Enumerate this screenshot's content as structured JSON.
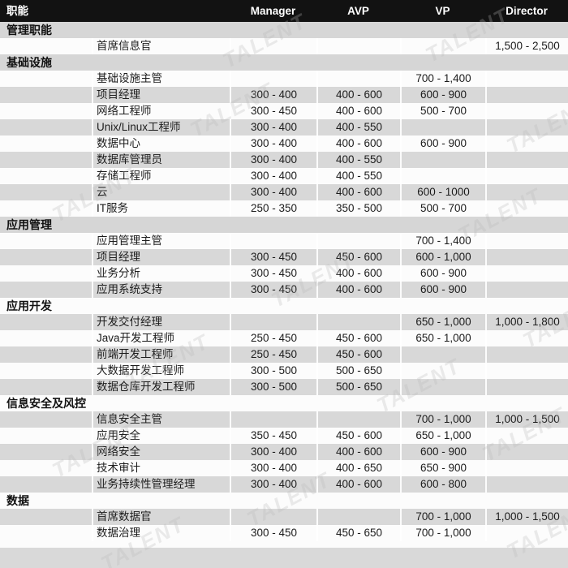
{
  "header": {
    "function_label": "职能",
    "columns": [
      "Manager",
      "AVP",
      "VP",
      "Director"
    ]
  },
  "watermark_text": "TALENT",
  "colors": {
    "header_bg": "#121212",
    "header_text": "#ffffff",
    "stripe_gray": "#d8d8d8",
    "stripe_white": "#fcfcfc",
    "body_text": "#1c1c1c"
  },
  "table": {
    "sections": [
      {
        "name": "管理职能",
        "rows": [
          {
            "role": "首席信息官",
            "manager": "",
            "avp": "",
            "vp": "",
            "director": "1,500 - 2,500"
          }
        ]
      },
      {
        "name": "基础设施",
        "rows": [
          {
            "role": "基础设施主管",
            "manager": "",
            "avp": "",
            "vp": "700 - 1,400",
            "director": ""
          },
          {
            "role": "项目经理",
            "manager": "300 - 400",
            "avp": "400 - 600",
            "vp": "600 - 900",
            "director": ""
          },
          {
            "role": "网络工程师",
            "manager": "300 - 450",
            "avp": "400 - 600",
            "vp": "500 - 700",
            "director": ""
          },
          {
            "role": "Unix/Linux工程师",
            "manager": "300 - 400",
            "avp": "400 - 550",
            "vp": "",
            "director": ""
          },
          {
            "role": "数据中心",
            "manager": "300 - 400",
            "avp": "400 - 600",
            "vp": "600 - 900",
            "director": ""
          },
          {
            "role": "数据库管理员",
            "manager": "300 - 400",
            "avp": "400 - 550",
            "vp": "",
            "director": ""
          },
          {
            "role": "存储工程师",
            "manager": "300 - 400",
            "avp": "400 - 550",
            "vp": "",
            "director": ""
          },
          {
            "role": "云",
            "manager": "300 - 400",
            "avp": "400 - 600",
            "vp": "600 - 1000",
            "director": ""
          },
          {
            "role": "IT服务",
            "manager": "250 - 350",
            "avp": "350 - 500",
            "vp": "500 - 700",
            "director": ""
          }
        ]
      },
      {
        "name": "应用管理",
        "rows": [
          {
            "role": "应用管理主管",
            "manager": "",
            "avp": "",
            "vp": "700 - 1,400",
            "director": ""
          },
          {
            "role": "项目经理",
            "manager": "300 - 450",
            "avp": "450 - 600",
            "vp": "600 - 1,000",
            "director": ""
          },
          {
            "role": "业务分析",
            "manager": "300 - 450",
            "avp": "400 - 600",
            "vp": "600 - 900",
            "director": ""
          },
          {
            "role": "应用系统支持",
            "manager": "300 - 450",
            "avp": "400 - 600",
            "vp": "600 - 900",
            "director": ""
          }
        ]
      },
      {
        "name": "应用开发",
        "rows": [
          {
            "role": "开发交付经理",
            "manager": "",
            "avp": "",
            "vp": "650 - 1,000",
            "director": "1,000 - 1,800"
          },
          {
            "role": "Java开发工程师",
            "manager": "250 - 450",
            "avp": "450 - 600",
            "vp": "650 - 1,000",
            "director": ""
          },
          {
            "role": "前端开发工程师",
            "manager": "250 - 450",
            "avp": "450 - 600",
            "vp": "",
            "director": ""
          },
          {
            "role": "大数据开发工程师",
            "manager": "300 - 500",
            "avp": "500 - 650",
            "vp": "",
            "director": ""
          },
          {
            "role": "数据仓库开发工程师",
            "manager": "300 - 500",
            "avp": "500 - 650",
            "vp": "",
            "director": ""
          }
        ]
      },
      {
        "name": "信息安全及风控",
        "rows": [
          {
            "role": "信息安全主管",
            "manager": "",
            "avp": "",
            "vp": "700 - 1,000",
            "director": "1,000 - 1,500"
          },
          {
            "role": "应用安全",
            "manager": "350 - 450",
            "avp": "450 - 600",
            "vp": "650 - 1,000",
            "director": ""
          },
          {
            "role": "网络安全",
            "manager": "300 - 400",
            "avp": "400 - 600",
            "vp": "600 - 900",
            "director": ""
          },
          {
            "role": "技术审计",
            "manager": "300 - 400",
            "avp": "400 - 650",
            "vp": "650 - 900",
            "director": ""
          },
          {
            "role": "业务持续性管理经理",
            "manager": "300 - 400",
            "avp": "400 - 600",
            "vp": "600 - 800",
            "director": ""
          }
        ]
      },
      {
        "name": "数据",
        "rows": [
          {
            "role": "首席数据官",
            "manager": "",
            "avp": "",
            "vp": "700 - 1,000",
            "director": "1,000 - 1,500"
          },
          {
            "role": "数据治理",
            "manager": "300 - 450",
            "avp": "450 - 650",
            "vp": "700 - 1,000",
            "director": ""
          }
        ]
      }
    ]
  }
}
